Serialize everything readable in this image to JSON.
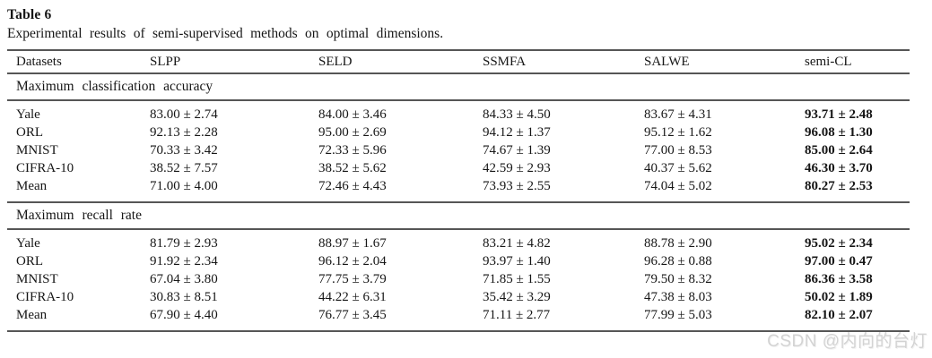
{
  "caption": {
    "label": "Table 6",
    "description": "Experimental results of semi-supervised methods on optimal dimensions."
  },
  "table": {
    "columns": [
      "Datasets",
      "SLPP",
      "SELD",
      "SSMFA",
      "SALWE",
      "semi-CL"
    ],
    "rule_color": "#565656",
    "best_column": "semi-CL",
    "sections": [
      {
        "title": "Maximum classification accuracy",
        "rows": [
          {
            "dataset": "Yale",
            "values": [
              "83.00 ± 2.74",
              "84.00 ± 3.46",
              "84.33 ± 4.50",
              "83.67 ± 4.31",
              "93.71 ± 2.48"
            ]
          },
          {
            "dataset": "ORL",
            "values": [
              "92.13 ± 2.28",
              "95.00 ± 2.69",
              "94.12 ± 1.37",
              "95.12 ± 1.62",
              "96.08 ± 1.30"
            ]
          },
          {
            "dataset": "MNIST",
            "values": [
              "70.33 ± 3.42",
              "72.33 ± 5.96",
              "74.67 ± 1.39",
              "77.00 ± 8.53",
              "85.00 ± 2.64"
            ]
          },
          {
            "dataset": "CIFRA-10",
            "values": [
              "38.52 ± 7.57",
              "38.52 ± 5.62",
              "42.59 ± 2.93",
              "40.37 ± 5.62",
              "46.30 ± 3.70"
            ]
          },
          {
            "dataset": "Mean",
            "values": [
              "71.00 ± 4.00",
              "72.46 ± 4.43",
              "73.93 ± 2.55",
              "74.04 ± 5.02",
              "80.27 ± 2.53"
            ]
          }
        ]
      },
      {
        "title": "Maximum recall rate",
        "rows": [
          {
            "dataset": "Yale",
            "values": [
              "81.79 ± 2.93",
              "88.97 ± 1.67",
              "83.21 ± 4.82",
              "88.78 ± 2.90",
              "95.02 ± 2.34"
            ]
          },
          {
            "dataset": "ORL",
            "values": [
              "91.92 ± 2.34",
              "96.12 ± 2.04",
              "93.97 ± 1.40",
              "96.28 ± 0.88",
              "97.00 ± 0.47"
            ]
          },
          {
            "dataset": "MNIST",
            "values": [
              "67.04 ± 3.80",
              "77.75 ± 3.79",
              "71.85 ± 1.55",
              "79.50 ± 8.32",
              "86.36 ± 3.58"
            ]
          },
          {
            "dataset": "CIFRA-10",
            "values": [
              "30.83 ± 8.51",
              "44.22 ± 6.31",
              "35.42 ± 3.29",
              "47.38 ± 8.03",
              "50.02 ± 1.89"
            ]
          },
          {
            "dataset": "Mean",
            "values": [
              "67.90 ± 4.40",
              "76.77 ± 3.45",
              "71.11 ± 2.77",
              "77.99 ± 5.03",
              "82.10 ± 2.07"
            ]
          }
        ]
      }
    ]
  },
  "watermark": {
    "text": "CSDN @内向的台灯"
  }
}
